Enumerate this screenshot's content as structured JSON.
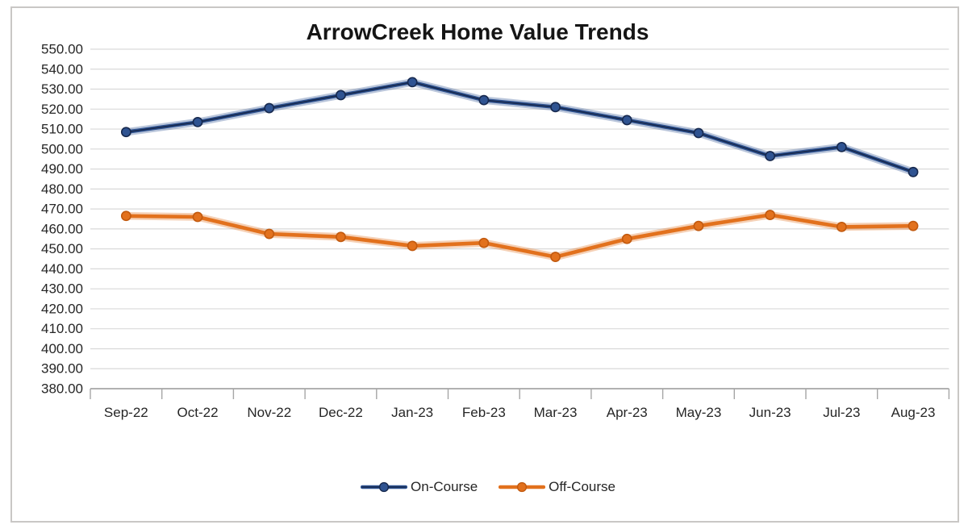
{
  "chart_data": {
    "type": "line",
    "title": "ArrowCreek Home Value Trends",
    "categories": [
      "Sep-22",
      "Oct-22",
      "Nov-22",
      "Dec-22",
      "Jan-23",
      "Feb-23",
      "Mar-23",
      "Apr-23",
      "May-23",
      "Jun-23",
      "Jul-23",
      "Aug-23"
    ],
    "series": [
      {
        "name": "On-Course",
        "color": "#2F5391",
        "edge": "#17294E",
        "core": "#17294E",
        "values": [
          508.5,
          513.5,
          520.5,
          527.0,
          533.5,
          524.5,
          521.0,
          514.5,
          508.0,
          496.5,
          501.0,
          488.5
        ]
      },
      {
        "name": "Off-Course",
        "color": "#E2711D",
        "edge": "#C25A0F",
        "core": null,
        "values": [
          466.5,
          466.0,
          457.5,
          456.0,
          451.5,
          453.0,
          446.0,
          455.0,
          461.5,
          467.0,
          461.0,
          461.5
        ]
      }
    ],
    "ylim": [
      380,
      550
    ],
    "ytick_step": 10,
    "ytick_labels": [
      "550.00",
      "540.00",
      "530.00",
      "520.00",
      "510.00",
      "500.00",
      "490.00",
      "480.00",
      "470.00",
      "460.00",
      "450.00",
      "440.00",
      "430.00",
      "420.00",
      "410.00",
      "400.00",
      "390.00",
      "380.00"
    ],
    "xlabel": "",
    "ylabel": "",
    "grid": true,
    "legend_position": "bottom",
    "gridline_color": "#D9D9D9",
    "axis_color": "#A6A6A6",
    "text_color": "#262626"
  }
}
